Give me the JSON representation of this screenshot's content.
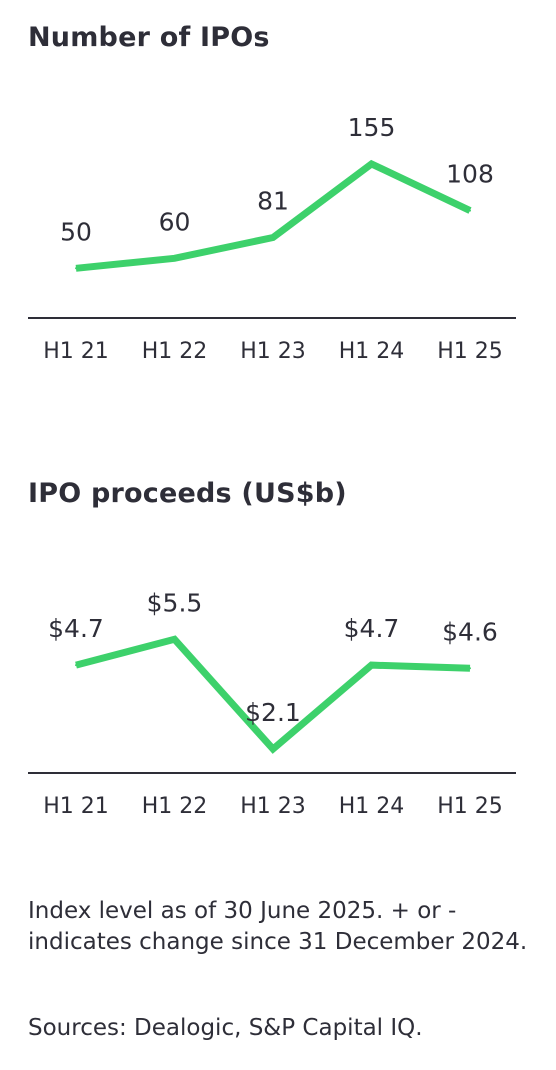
{
  "chart_data": [
    {
      "type": "line",
      "title": "Number of IPOs",
      "categories": [
        "H1 21",
        "H1 22",
        "H1 23",
        "H1 24",
        "H1 25"
      ],
      "values": [
        50,
        60,
        81,
        155,
        108
      ],
      "value_labels": [
        "50",
        "60",
        "81",
        "155",
        "108"
      ],
      "ylim": [
        0,
        175
      ],
      "grid": false,
      "line_color": "#3dd16b",
      "axis_color": "#2e2e38"
    },
    {
      "type": "line",
      "title": "IPO proceeds (US$b)",
      "categories": [
        "H1 21",
        "H1 22",
        "H1 23",
        "H1 24",
        "H1 25"
      ],
      "values": [
        4.7,
        5.5,
        2.1,
        4.7,
        4.6
      ],
      "value_labels": [
        "$4.7",
        "$5.5",
        "$2.1",
        "$4.7",
        "$4.6"
      ],
      "ylim": [
        1.2,
        6.5
      ],
      "grid": false,
      "line_color": "#3dd16b",
      "axis_color": "#2e2e38"
    }
  ],
  "footnote": "Index level as of 30 June 2025. + or - indicates change since 31 December 2024.",
  "sources": "Sources: Dealogic, S&P Capital IQ."
}
